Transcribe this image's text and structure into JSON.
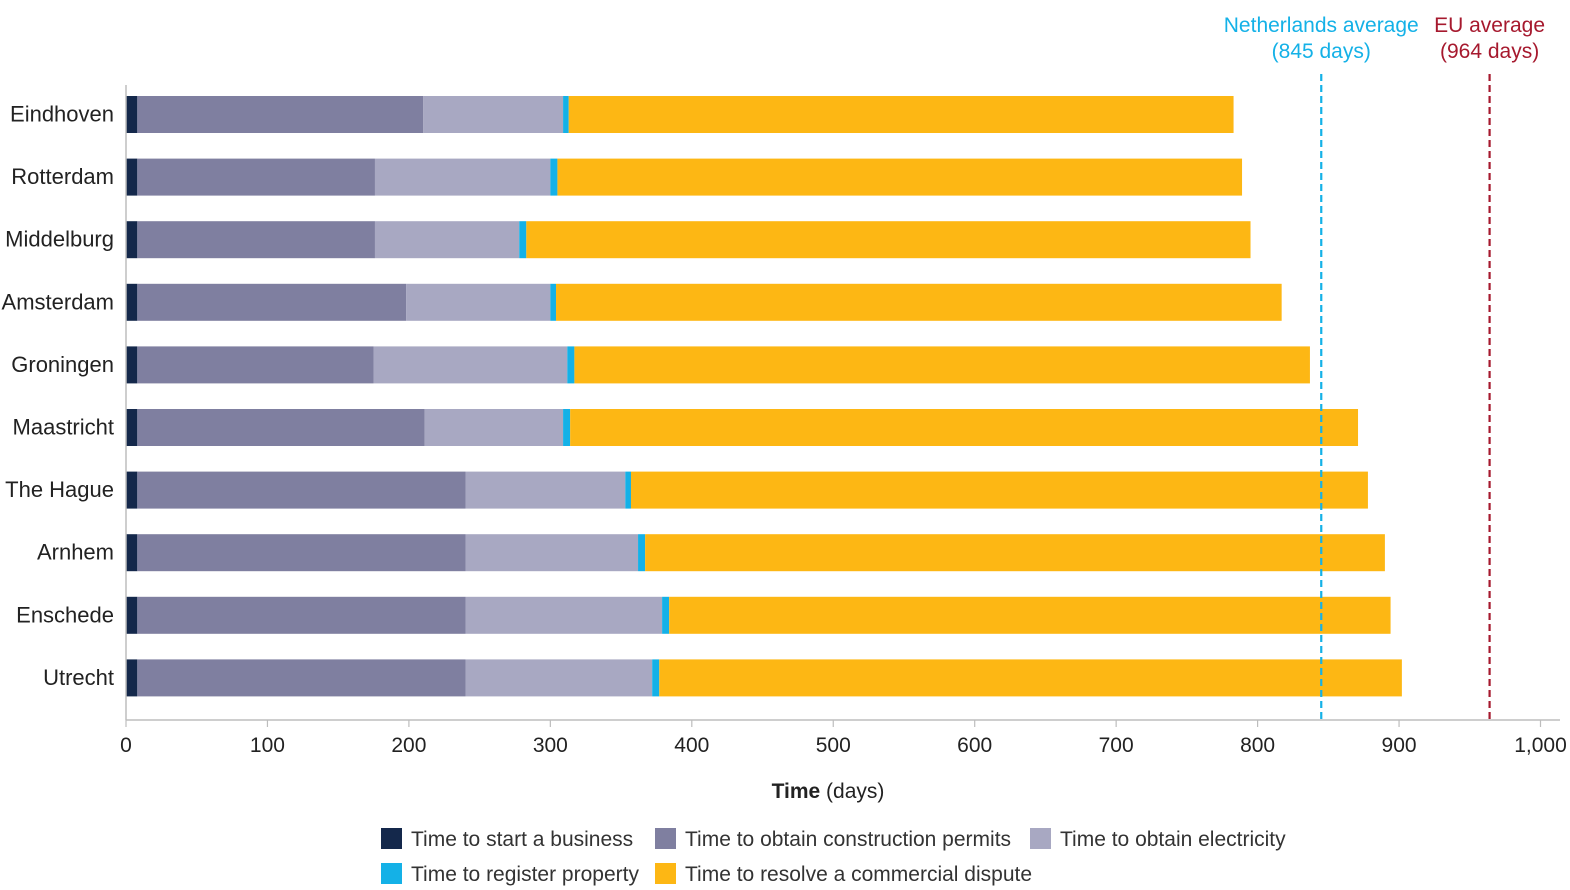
{
  "chart_data": {
    "type": "bar",
    "orientation": "horizontal",
    "stacked": true,
    "title": "",
    "xlabel_bold": "Time",
    "xlabel_rest": " (days)",
    "xlim": [
      0,
      1000
    ],
    "xticks": [
      0,
      100,
      200,
      300,
      400,
      500,
      600,
      700,
      800,
      900,
      1000
    ],
    "xtick_labels": [
      "0",
      "100",
      "200",
      "300",
      "400",
      "500",
      "600",
      "700",
      "800",
      "900",
      "1,000"
    ],
    "grid": false,
    "legend_position": "bottom",
    "categories": [
      "Eindhoven",
      "Rotterdam",
      "Middelburg",
      "Amsterdam",
      "Groningen",
      "Maastricht",
      "The Hague",
      "Arnhem",
      "Enschede",
      "Utrecht"
    ],
    "series": [
      {
        "name": "Time to start a business",
        "color": "#14284b",
        "values": [
          8,
          8,
          8,
          8,
          8,
          8,
          8,
          8,
          8,
          8
        ]
      },
      {
        "name": "Time to obtain construction permits",
        "color": "#7f7fa0",
        "values": [
          202,
          168,
          168,
          190,
          167,
          203,
          232,
          232,
          232,
          232
        ]
      },
      {
        "name": "Time to obtain electricity",
        "color": "#a8a8c2",
        "values": [
          99,
          124,
          102,
          102,
          137,
          98,
          113,
          122,
          139,
          132
        ]
      },
      {
        "name": "Time to register property",
        "color": "#14b1e7",
        "values": [
          4,
          5,
          5,
          4,
          5,
          5,
          4,
          5,
          5,
          5
        ]
      },
      {
        "name": "Time to resolve a commercial dispute",
        "color": "#fdb714",
        "values": [
          470,
          484,
          512,
          513,
          520,
          557,
          521,
          523,
          510,
          525
        ]
      }
    ],
    "reference_lines": [
      {
        "value": 845,
        "line1": "Netherlands average",
        "line2": "(845 days)",
        "color": "#14b1e7"
      },
      {
        "value": 964,
        "line1": "EU average",
        "line2": "(964 days)",
        "color": "#a6192e"
      }
    ],
    "legend_rows": [
      [
        0,
        1,
        2
      ],
      [
        3,
        4
      ]
    ]
  }
}
